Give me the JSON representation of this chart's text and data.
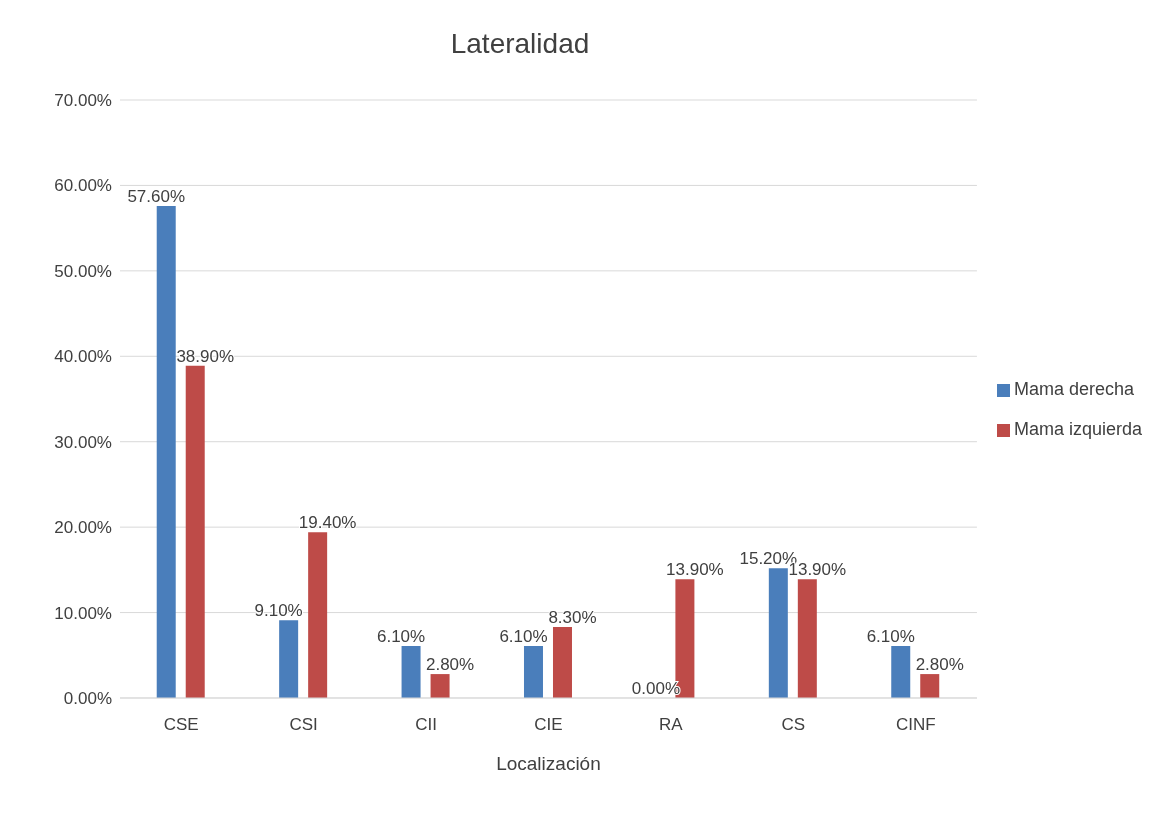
{
  "chart_data": {
    "type": "bar",
    "title": "Lateralidad",
    "xlabel": "Localización",
    "categories": [
      "CSE",
      "CSI",
      "CII",
      "CIE",
      "RA",
      "CS",
      "CINF"
    ],
    "series": [
      {
        "name": "Mama derecha",
        "color": "#4a7ebb",
        "values": [
          57.6,
          9.1,
          6.1,
          6.1,
          0,
          15.2,
          6.1
        ],
        "value_labels": [
          "57.60%",
          "9.10%",
          "6.10%",
          "6.10%",
          "0.00%",
          "15.20%",
          "6.10%"
        ]
      },
      {
        "name": "Mama izquierda",
        "color": "#be4b48",
        "values": [
          38.9,
          19.4,
          2.8,
          8.3,
          13.9,
          13.9,
          2.8
        ],
        "value_labels": [
          "38.90%",
          "19.40%",
          "2.80%",
          "8.30%",
          "13.90%",
          "13.90%",
          "2.80%"
        ]
      }
    ],
    "ylim": [
      0,
      70
    ],
    "yticks": [
      {
        "value": 0,
        "label": "0.00%"
      },
      {
        "value": 10,
        "label": "10.00%"
      },
      {
        "value": 20,
        "label": "20.00%"
      },
      {
        "value": 30,
        "label": "30.00%"
      },
      {
        "value": 40,
        "label": "40.00%"
      },
      {
        "value": 50,
        "label": "50.00%"
      },
      {
        "value": 60,
        "label": "60.00%"
      },
      {
        "value": 70,
        "label": "70.00%"
      }
    ],
    "grid": "y",
    "legend": "right"
  }
}
